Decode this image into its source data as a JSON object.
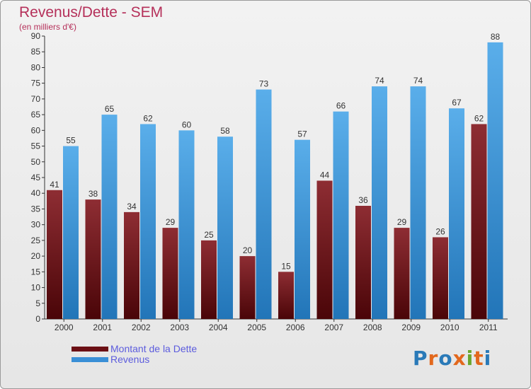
{
  "title": "Revenus/Dette - SEM",
  "subtitle": "(en milliers d'€)",
  "colors": {
    "dette": "#7a1a1f",
    "revenus": "#3a8fd6",
    "title": "#b5305a",
    "legend_text": "#5c5cdd"
  },
  "legend": [
    {
      "label": "Montant de la Dette",
      "color": "#6b0f14"
    },
    {
      "label": "Revenus",
      "color": "#3a8fd6"
    }
  ],
  "logo": {
    "letters": [
      "P",
      "r",
      "o",
      "x",
      "i",
      "t",
      "i"
    ],
    "colors": [
      "#2a7ab8",
      "#e2681d",
      "#2a7ab8",
      "#e2681d",
      "#6aa72e",
      "#e2681d",
      "#2a7ab8"
    ]
  },
  "chart_data": {
    "type": "bar",
    "title": "Revenus/Dette - SEM",
    "subtitle": "(en milliers d'€)",
    "xlabel": "",
    "ylabel": "",
    "ylim": [
      0,
      90
    ],
    "yticks": [
      0,
      5,
      10,
      15,
      20,
      25,
      30,
      35,
      40,
      45,
      50,
      55,
      60,
      65,
      70,
      75,
      80,
      85,
      90
    ],
    "grid": false,
    "legend_position": "bottom-left",
    "categories": [
      "2000",
      "2001",
      "2002",
      "2003",
      "2004",
      "2005",
      "2006",
      "2007",
      "2008",
      "2009",
      "2010",
      "2011"
    ],
    "series": [
      {
        "name": "Montant de la Dette",
        "values": [
          41,
          38,
          34,
          29,
          25,
          20,
          15,
          44,
          36,
          29,
          26,
          62
        ]
      },
      {
        "name": "Revenus",
        "values": [
          55,
          65,
          62,
          60,
          58,
          73,
          57,
          66,
          74,
          74,
          67,
          88
        ]
      }
    ]
  }
}
